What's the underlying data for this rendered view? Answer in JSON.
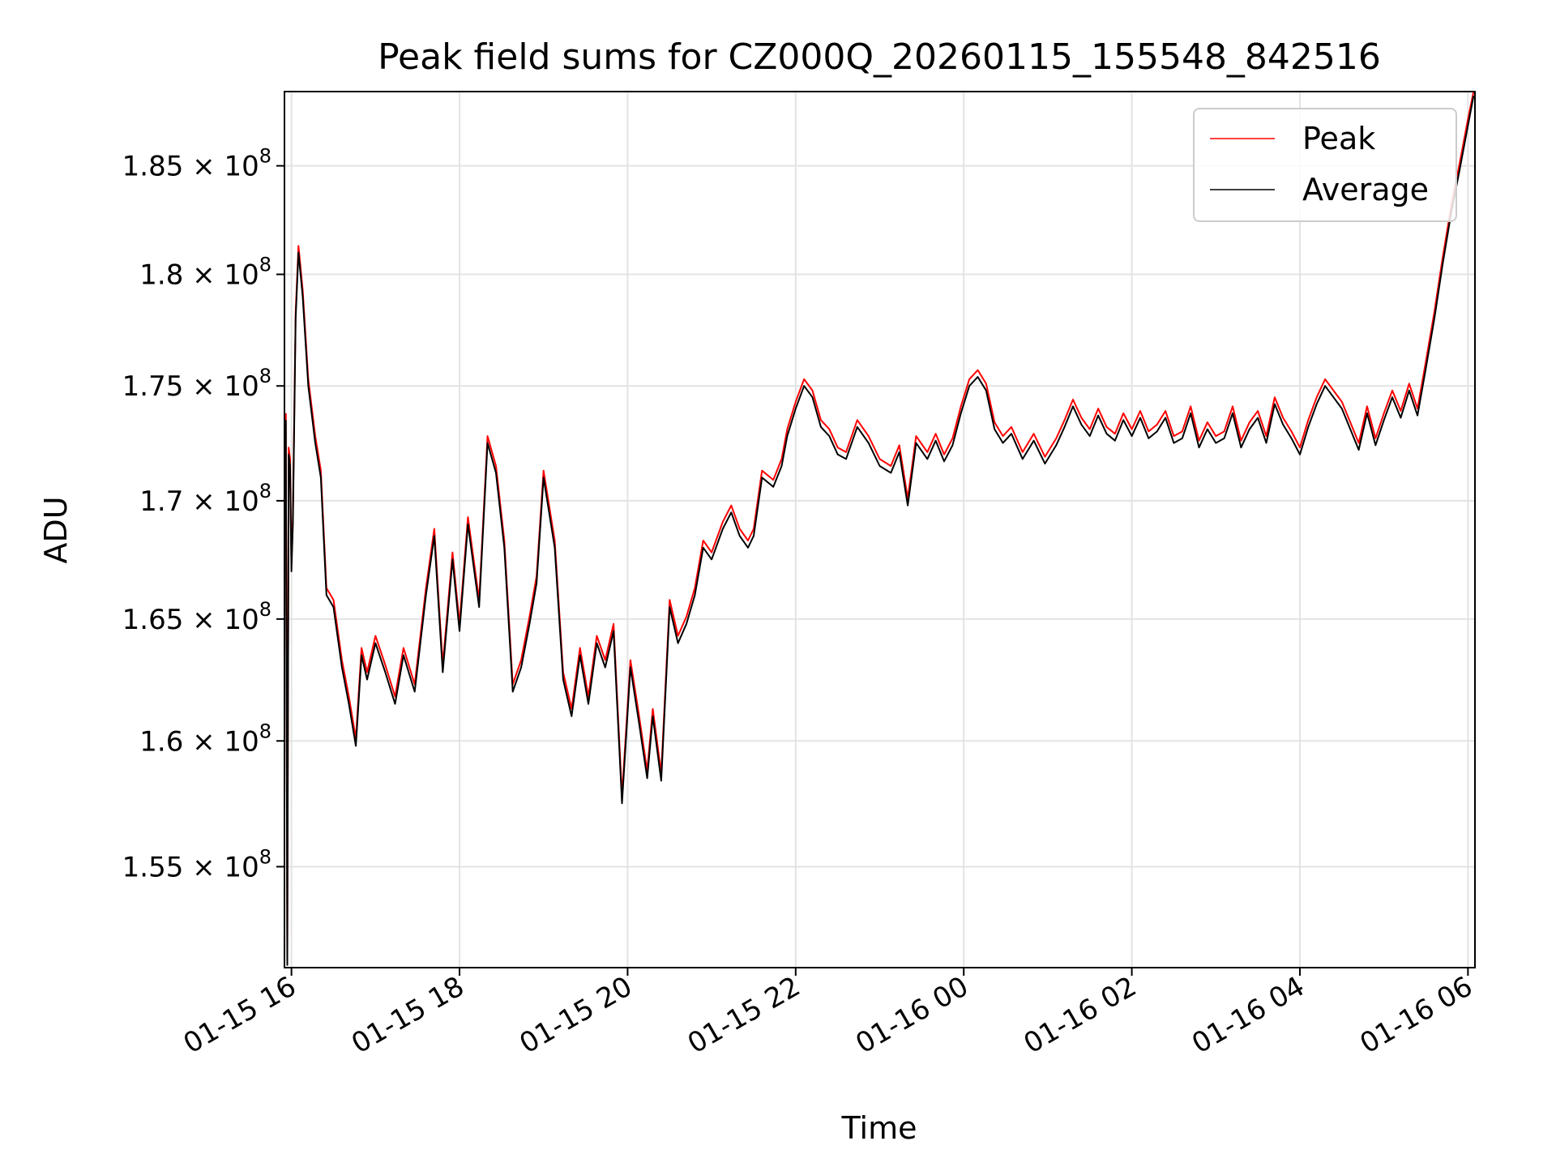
{
  "chart_data": {
    "type": "line",
    "title": "Peak field sums for CZ000Q_20260115_155548_842516",
    "xlabel": "Time",
    "ylabel": "ADU",
    "x_axis": "datetime",
    "y_scale": "log",
    "xlim": [
      "2026-01-15 15:55",
      "2026-01-16 06:05"
    ],
    "ylim": [
      151100000,
      188500000
    ],
    "grid": true,
    "legend": "upper right",
    "x_ticks": [
      {
        "value": "2026-01-15 16:00",
        "label": "01-15 16"
      },
      {
        "value": "2026-01-15 18:00",
        "label": "01-15 18"
      },
      {
        "value": "2026-01-15 20:00",
        "label": "01-15 20"
      },
      {
        "value": "2026-01-15 22:00",
        "label": "01-15 22"
      },
      {
        "value": "2026-01-16 00:00",
        "label": "01-16 00"
      },
      {
        "value": "2026-01-16 02:00",
        "label": "01-16 02"
      },
      {
        "value": "2026-01-16 04:00",
        "label": "01-16 04"
      },
      {
        "value": "2026-01-16 06:00",
        "label": "01-16 06"
      }
    ],
    "y_ticks": [
      {
        "value": 155000000,
        "mantissa": "1.55",
        "exp": "8"
      },
      {
        "value": 160000000,
        "mantissa": "1.6",
        "exp": "8"
      },
      {
        "value": 165000000,
        "mantissa": "1.65",
        "exp": "8"
      },
      {
        "value": 170000000,
        "mantissa": "1.7",
        "exp": "8"
      },
      {
        "value": 175000000,
        "mantissa": "1.75",
        "exp": "8"
      },
      {
        "value": 180000000,
        "mantissa": "1.8",
        "exp": "8"
      },
      {
        "value": 185000000,
        "mantissa": "1.85",
        "exp": "8"
      }
    ],
    "x": [
      "2026-01-15 15:56",
      "2026-01-15 15:57",
      "2026-01-15 15:58",
      "2026-01-15 15:59",
      "2026-01-15 16:00",
      "2026-01-15 16:01",
      "2026-01-15 16:03",
      "2026-01-15 16:05",
      "2026-01-15 16:08",
      "2026-01-15 16:12",
      "2026-01-15 16:17",
      "2026-01-15 16:21",
      "2026-01-15 16:25",
      "2026-01-15 16:30",
      "2026-01-15 16:36",
      "2026-01-15 16:41",
      "2026-01-15 16:46",
      "2026-01-15 16:50",
      "2026-01-15 16:54",
      "2026-01-15 17:00",
      "2026-01-15 17:07",
      "2026-01-15 17:14",
      "2026-01-15 17:20",
      "2026-01-15 17:28",
      "2026-01-15 17:36",
      "2026-01-15 17:42",
      "2026-01-15 17:48",
      "2026-01-15 17:55",
      "2026-01-15 18:00",
      "2026-01-15 18:06",
      "2026-01-15 18:14",
      "2026-01-15 18:20",
      "2026-01-15 18:26",
      "2026-01-15 18:32",
      "2026-01-15 18:38",
      "2026-01-15 18:44",
      "2026-01-15 18:50",
      "2026-01-15 18:55",
      "2026-01-15 19:00",
      "2026-01-15 19:08",
      "2026-01-15 19:14",
      "2026-01-15 19:20",
      "2026-01-15 19:26",
      "2026-01-15 19:32",
      "2026-01-15 19:38",
      "2026-01-15 19:44",
      "2026-01-15 19:50",
      "2026-01-15 19:56",
      "2026-01-15 20:02",
      "2026-01-15 20:08",
      "2026-01-15 20:14",
      "2026-01-15 20:18",
      "2026-01-15 20:24",
      "2026-01-15 20:30",
      "2026-01-15 20:36",
      "2026-01-15 20:42",
      "2026-01-15 20:48",
      "2026-01-15 20:54",
      "2026-01-15 21:00",
      "2026-01-15 21:08",
      "2026-01-15 21:14",
      "2026-01-15 21:20",
      "2026-01-15 21:26",
      "2026-01-15 21:30",
      "2026-01-15 21:36",
      "2026-01-15 21:44",
      "2026-01-15 21:50",
      "2026-01-15 21:54",
      "2026-01-15 22:00",
      "2026-01-15 22:06",
      "2026-01-15 22:12",
      "2026-01-15 22:18",
      "2026-01-15 22:24",
      "2026-01-15 22:30",
      "2026-01-15 22:36",
      "2026-01-15 22:44",
      "2026-01-15 22:52",
      "2026-01-15 23:00",
      "2026-01-15 23:08",
      "2026-01-15 23:14",
      "2026-01-15 23:20",
      "2026-01-15 23:26",
      "2026-01-15 23:34",
      "2026-01-15 23:40",
      "2026-01-15 23:46",
      "2026-01-15 23:52",
      "2026-01-15 23:58",
      "2026-01-16 00:04",
      "2026-01-16 00:10",
      "2026-01-16 00:16",
      "2026-01-16 00:22",
      "2026-01-16 00:28",
      "2026-01-16 00:34",
      "2026-01-16 00:42",
      "2026-01-16 00:50",
      "2026-01-16 00:58",
      "2026-01-16 01:06",
      "2026-01-16 01:12",
      "2026-01-16 01:18",
      "2026-01-16 01:24",
      "2026-01-16 01:30",
      "2026-01-16 01:36",
      "2026-01-16 01:42",
      "2026-01-16 01:48",
      "2026-01-16 01:54",
      "2026-01-16 02:00",
      "2026-01-16 02:06",
      "2026-01-16 02:12",
      "2026-01-16 02:18",
      "2026-01-16 02:24",
      "2026-01-16 02:30",
      "2026-01-16 02:36",
      "2026-01-16 02:42",
      "2026-01-16 02:48",
      "2026-01-16 02:54",
      "2026-01-16 03:00",
      "2026-01-16 03:06",
      "2026-01-16 03:12",
      "2026-01-16 03:18",
      "2026-01-16 03:24",
      "2026-01-16 03:30",
      "2026-01-16 03:36",
      "2026-01-16 03:42",
      "2026-01-16 03:48",
      "2026-01-16 03:54",
      "2026-01-16 04:00",
      "2026-01-16 04:06",
      "2026-01-16 04:12",
      "2026-01-16 04:18",
      "2026-01-16 04:24",
      "2026-01-16 04:30",
      "2026-01-16 04:36",
      "2026-01-16 04:42",
      "2026-01-16 04:48",
      "2026-01-16 04:54",
      "2026-01-16 05:00",
      "2026-01-16 05:06",
      "2026-01-16 05:12",
      "2026-01-16 05:18",
      "2026-01-16 05:24",
      "2026-01-16 05:30",
      "2026-01-16 05:36",
      "2026-01-16 05:42",
      "2026-01-16 05:48",
      "2026-01-16 05:54",
      "2026-01-16 06:00",
      "2026-01-16 06:04"
    ],
    "series": [
      {
        "name": "Average",
        "color": "#000000",
        "values": [
          173500000,
          151200000,
          172000000,
          171500000,
          167000000,
          169000000,
          178000000,
          181000000,
          179000000,
          175000000,
          172500000,
          171000000,
          166000000,
          165500000,
          163000000,
          161500000,
          159800000,
          163500000,
          162500000,
          164000000,
          162800000,
          161500000,
          163500000,
          162000000,
          166000000,
          168500000,
          162800000,
          167500000,
          164500000,
          169000000,
          165500000,
          172500000,
          171200000,
          168000000,
          162000000,
          163000000,
          164800000,
          166500000,
          171000000,
          168000000,
          162500000,
          161000000,
          163500000,
          161500000,
          164000000,
          163000000,
          164500000,
          157500000,
          163000000,
          160800000,
          158500000,
          161000000,
          158400000,
          165500000,
          164000000,
          164800000,
          166000000,
          168000000,
          167500000,
          168800000,
          169500000,
          168500000,
          168000000,
          168500000,
          171000000,
          170600000,
          171500000,
          172800000,
          174000000,
          175000000,
          174500000,
          173200000,
          172800000,
          172000000,
          171800000,
          173200000,
          172500000,
          171500000,
          171200000,
          172100000,
          169800000,
          172500000,
          171800000,
          172600000,
          171700000,
          172400000,
          173800000,
          175000000,
          175400000,
          174800000,
          173100000,
          172500000,
          172900000,
          171800000,
          172600000,
          171600000,
          172400000,
          173200000,
          174100000,
          173300000,
          172800000,
          173700000,
          172900000,
          172600000,
          173500000,
          172800000,
          173600000,
          172700000,
          173000000,
          173600000,
          172500000,
          172700000,
          173800000,
          172300000,
          173100000,
          172500000,
          172700000,
          173800000,
          172300000,
          173100000,
          173600000,
          172500000,
          174200000,
          173300000,
          172700000,
          172000000,
          173200000,
          174200000,
          175000000,
          174500000,
          174000000,
          173100000,
          172200000,
          173800000,
          172400000,
          173500000,
          174500000,
          173600000,
          174800000,
          173700000,
          175800000,
          178000000,
          180500000,
          182800000,
          184800000,
          186900000,
          188300000
        ]
      },
      {
        "name": "Peak",
        "color": "#ff0000",
        "values": [
          173800000,
          151500000,
          172300000,
          171800000,
          167300000,
          169300000,
          178300000,
          181300000,
          179300000,
          175300000,
          172800000,
          171300000,
          166300000,
          165800000,
          163300000,
          161800000,
          160100000,
          163800000,
          162800000,
          164300000,
          163100000,
          161800000,
          163800000,
          162300000,
          166300000,
          168800000,
          163100000,
          167800000,
          164800000,
          169300000,
          165800000,
          172800000,
          171500000,
          168300000,
          162300000,
          163300000,
          165100000,
          166800000,
          171300000,
          168300000,
          162800000,
          161300000,
          163800000,
          161800000,
          164300000,
          163300000,
          164800000,
          157800000,
          163300000,
          161100000,
          158800000,
          161300000,
          158700000,
          165800000,
          164300000,
          165100000,
          166300000,
          168300000,
          167800000,
          169100000,
          169800000,
          168800000,
          168300000,
          168800000,
          171300000,
          170900000,
          171800000,
          173100000,
          174300000,
          175300000,
          174800000,
          173500000,
          173100000,
          172300000,
          172100000,
          173500000,
          172800000,
          171800000,
          171500000,
          172400000,
          170100000,
          172800000,
          172100000,
          172900000,
          172000000,
          172700000,
          174100000,
          175300000,
          175700000,
          175100000,
          173400000,
          172800000,
          173200000,
          172100000,
          172900000,
          171900000,
          172700000,
          173500000,
          174400000,
          173600000,
          173100000,
          174000000,
          173200000,
          172900000,
          173800000,
          173100000,
          173900000,
          173000000,
          173300000,
          173900000,
          172800000,
          173000000,
          174100000,
          172600000,
          173400000,
          172800000,
          173000000,
          174100000,
          172600000,
          173400000,
          173900000,
          172800000,
          174500000,
          173600000,
          173000000,
          172300000,
          173500000,
          174500000,
          175300000,
          174800000,
          174300000,
          173400000,
          172500000,
          174100000,
          172700000,
          173800000,
          174800000,
          173900000,
          175100000,
          174000000,
          176100000,
          178300000,
          180800000,
          183100000,
          185100000,
          187200000,
          188500000
        ]
      }
    ]
  }
}
